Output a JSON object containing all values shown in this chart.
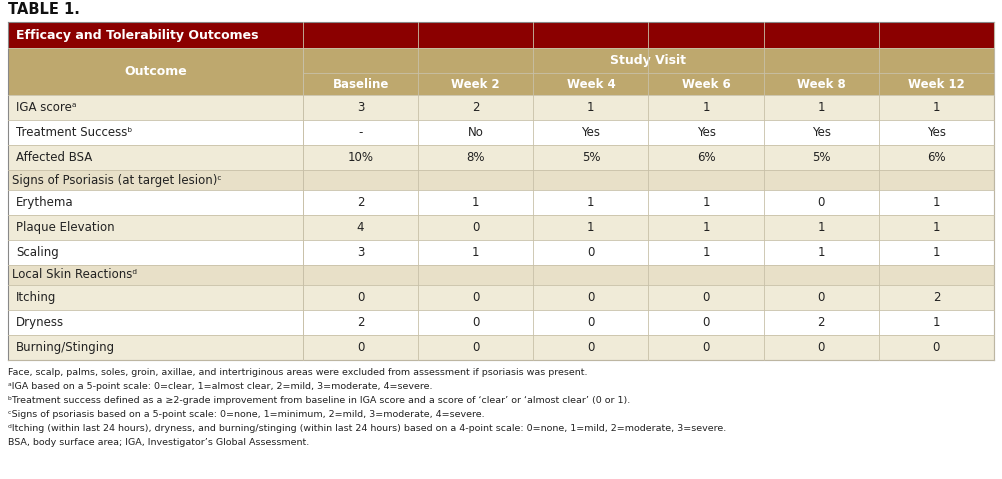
{
  "title": "TABLE 1.",
  "header_title": "Efficacy and Tolerability Outcomes",
  "col_header_left": "Outcome",
  "col_header_group": "Study Visit",
  "col_headers": [
    "Baseline",
    "Week 2",
    "Week 4",
    "Week 6",
    "Week 8",
    "Week 12"
  ],
  "rows": [
    {
      "label": "IGA scoreᵃ",
      "values": [
        "3",
        "2",
        "1",
        "1",
        "1",
        "1"
      ],
      "type": "data",
      "bg": "light"
    },
    {
      "label": "Treatment Successᵇ",
      "values": [
        "-",
        "No",
        "Yes",
        "Yes",
        "Yes",
        "Yes"
      ],
      "type": "data",
      "bg": "white"
    },
    {
      "label": "Affected BSA",
      "values": [
        "10%",
        "8%",
        "5%",
        "6%",
        "5%",
        "6%"
      ],
      "type": "data",
      "bg": "light"
    },
    {
      "label": "Signs of Psoriasis (at target lesion)ᶜ",
      "values": [
        "",
        "",
        "",
        "",
        "",
        ""
      ],
      "type": "subheader",
      "bg": "subheader"
    },
    {
      "label": "Erythema",
      "values": [
        "2",
        "1",
        "1",
        "1",
        "0",
        "1"
      ],
      "type": "data",
      "bg": "white"
    },
    {
      "label": "Plaque Elevation",
      "values": [
        "4",
        "0",
        "1",
        "1",
        "1",
        "1"
      ],
      "type": "data",
      "bg": "light"
    },
    {
      "label": "Scaling",
      "values": [
        "3",
        "1",
        "0",
        "1",
        "1",
        "1"
      ],
      "type": "data",
      "bg": "white"
    },
    {
      "label": "Local Skin Reactionsᵈ",
      "values": [
        "",
        "",
        "",
        "",
        "",
        ""
      ],
      "type": "subheader",
      "bg": "subheader"
    },
    {
      "label": "Itching",
      "values": [
        "0",
        "0",
        "0",
        "0",
        "0",
        "2"
      ],
      "type": "data",
      "bg": "light"
    },
    {
      "label": "Dryness",
      "values": [
        "2",
        "0",
        "0",
        "0",
        "2",
        "1"
      ],
      "type": "data",
      "bg": "white"
    },
    {
      "label": "Burning/Stinging",
      "values": [
        "0",
        "0",
        "0",
        "0",
        "0",
        "0"
      ],
      "type": "data",
      "bg": "light"
    }
  ],
  "footnotes": [
    "Face, scalp, palms, soles, groin, axillae, and intertriginous areas were excluded from assessment if psoriasis was present.",
    "ᵃIGA based on a 5-point scale: 0=clear, 1=almost clear, 2=mild, 3=moderate, 4=severe.",
    "ᵇTreatment success defined as a ≥2-grade improvement from baseline in IGA score and a score of ‘clear’ or ‘almost clear’ (0 or 1).",
    "ᶜSigns of psoriasis based on a 5-point scale: 0=none, 1=minimum, 2=mild, 3=moderate, 4=severe.",
    "ᵈItching (within last 24 hours), dryness, and burning/stinging (within last 24 hours) based on a 4-point scale: 0=none, 1=mild, 2=moderate, 3=severe.",
    "BSA, body surface area; IGA, Investigator’s Global Assessment."
  ],
  "color_dark_red": "#8B0000",
  "color_tan": "#BEA86E",
  "color_light_tan": "#F0EBD8",
  "color_white": "#FFFFFF",
  "color_subheader": "#E8E0C8",
  "color_header_text": "#FFFFFF",
  "color_data_text": "#222222",
  "color_title_text": "#111111",
  "color_grid": "#C8C0A8"
}
